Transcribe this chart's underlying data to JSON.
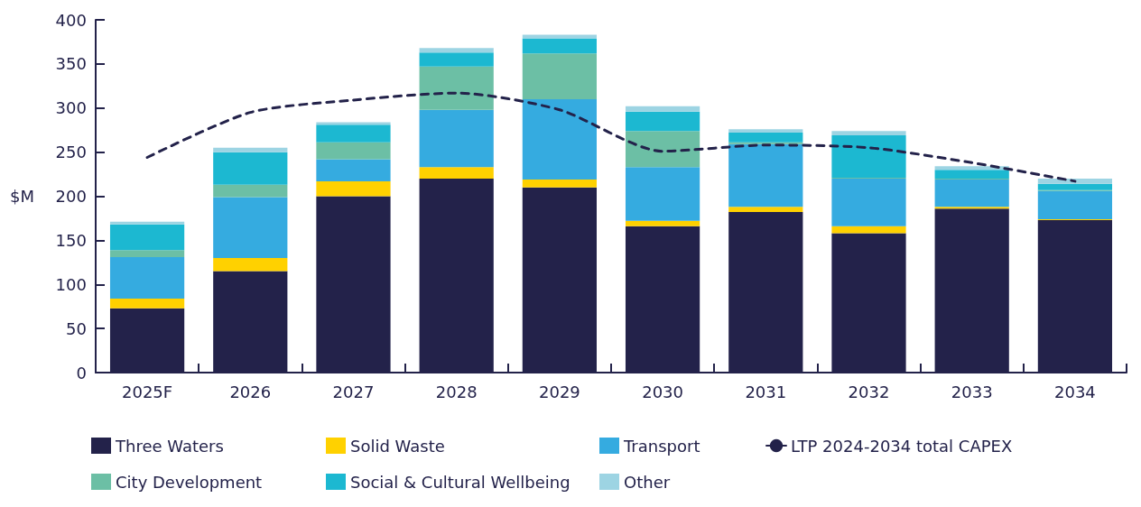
{
  "chart_data": {
    "type": "bar",
    "stacked": true,
    "ylabel": "$M",
    "categories": [
      "2025F",
      "2026",
      "2027",
      "2028",
      "2029",
      "2030",
      "2031",
      "2032",
      "2033",
      "2034"
    ],
    "ylim": [
      0,
      400
    ],
    "yticks": [
      0,
      50,
      100,
      150,
      200,
      250,
      300,
      350,
      400
    ],
    "grid": false,
    "legend": "bottom",
    "series": [
      {
        "name": "Three Waters",
        "color": "#23224a",
        "values": [
          73,
          115,
          200,
          220,
          210,
          166,
          182,
          158,
          186,
          173
        ]
      },
      {
        "name": "Solid Waste",
        "color": "#ffd100",
        "values": [
          11,
          15,
          17,
          13,
          9,
          6,
          6,
          8,
          2,
          1
        ]
      },
      {
        "name": "Transport",
        "color": "#35abe0",
        "values": [
          47,
          69,
          25,
          65,
          91,
          61,
          71,
          54,
          31,
          32
        ]
      },
      {
        "name": "LTP 2024-2034 total CAPEX",
        "type": "line",
        "color": "#23224a",
        "line_style": "dashed",
        "marker": "none",
        "values": [
          244,
          295,
          309,
          317,
          298,
          251,
          258,
          255,
          238,
          217
        ]
      },
      {
        "name": "City Development",
        "color": "#6cbfa5",
        "values": [
          8,
          14,
          19,
          49,
          52,
          41,
          2,
          1,
          1,
          1
        ]
      },
      {
        "name": "Social & Cultural Wellbeing",
        "color": "#1cb8d1",
        "values": [
          29,
          37,
          20,
          16,
          17,
          22,
          11,
          48,
          10,
          7
        ]
      },
      {
        "name": "Other",
        "color": "#9dd4e3",
        "values": [
          3,
          5,
          3,
          5,
          4,
          6,
          4,
          5,
          4,
          6
        ]
      }
    ]
  }
}
